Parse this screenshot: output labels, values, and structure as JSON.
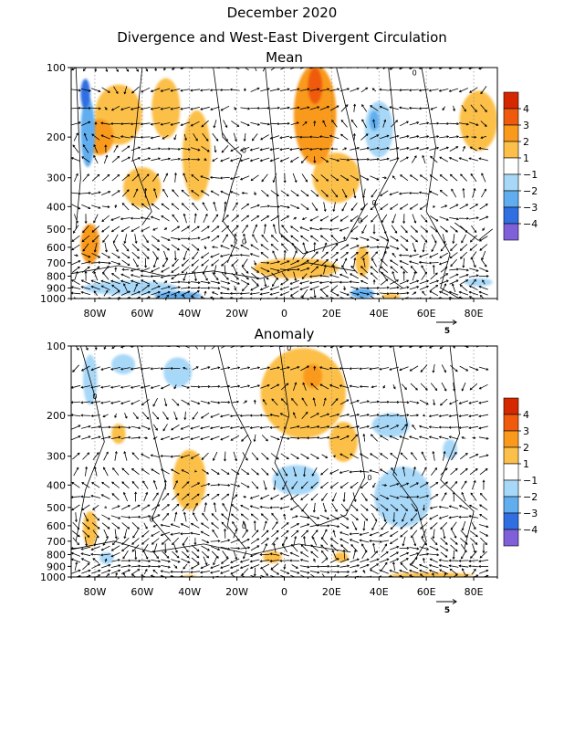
{
  "page": {
    "title_line1": "December 2020",
    "title_line2": "Divergence and West-East Divergent Circulation"
  },
  "chart_data": [
    {
      "type": "heatmap",
      "title": "Mean",
      "x_ticks": [
        "80W",
        "60W",
        "40W",
        "20W",
        "0",
        "20E",
        "40E",
        "60E",
        "80E"
      ],
      "x_tick_values": [
        -80,
        -60,
        -40,
        -20,
        0,
        20,
        40,
        60,
        80
      ],
      "xlim": [
        -90,
        90
      ],
      "y_ticks": [
        "100",
        "200",
        "300",
        "400",
        "500",
        "600",
        "700",
        "800",
        "900",
        "1000"
      ],
      "y_tick_values": [
        100,
        200,
        300,
        400,
        500,
        600,
        700,
        800,
        900,
        1000
      ],
      "ylim": [
        1000,
        100
      ],
      "y_scale": "log",
      "vector_reference_label": "5",
      "contour_labels": [
        {
          "lon": 55,
          "p": 105,
          "text": "0"
        },
        {
          "lon": -17,
          "p": 228,
          "text": "0"
        },
        {
          "lon": 38,
          "p": 385,
          "text": "0"
        },
        {
          "lon": -17,
          "p": 565,
          "text": "0"
        },
        {
          "lon": 32,
          "p": 460,
          "text": "0"
        }
      ],
      "shaded_regions": [
        {
          "lon": -83,
          "p": 190,
          "rx": 3,
          "ry": 0.35,
          "value": -2.5
        },
        {
          "lon": -84,
          "p": 130,
          "rx": 2,
          "ry": 0.15,
          "value": -3.5
        },
        {
          "lon": -78,
          "p": 200,
          "rx": 6,
          "ry": 0.18,
          "value": 2.2
        },
        {
          "lon": -70,
          "p": 160,
          "rx": 10,
          "ry": 0.3,
          "value": 1.6
        },
        {
          "lon": -50,
          "p": 150,
          "rx": 6,
          "ry": 0.3,
          "value": 1.6
        },
        {
          "lon": -37,
          "p": 240,
          "rx": 6,
          "ry": 0.45,
          "value": 1.5
        },
        {
          "lon": -60,
          "p": 330,
          "rx": 8,
          "ry": 0.2,
          "value": 1.3
        },
        {
          "lon": 13,
          "p": 160,
          "rx": 9,
          "ry": 0.5,
          "value": 2.5
        },
        {
          "lon": 13,
          "p": 120,
          "rx": 3,
          "ry": 0.18,
          "value": 3.8
        },
        {
          "lon": 22,
          "p": 300,
          "rx": 10,
          "ry": 0.25,
          "value": 1.4
        },
        {
          "lon": 40,
          "p": 185,
          "rx": 6,
          "ry": 0.28,
          "value": -1.6
        },
        {
          "lon": 38,
          "p": 170,
          "rx": 2,
          "ry": 0.1,
          "value": -2.4
        },
        {
          "lon": 82,
          "p": 170,
          "rx": 8,
          "ry": 0.3,
          "value": 1.8
        },
        {
          "lon": -82,
          "p": 580,
          "rx": 4,
          "ry": 0.2,
          "value": 2.2
        },
        {
          "lon": 5,
          "p": 740,
          "rx": 18,
          "ry": 0.1,
          "value": 1.4
        },
        {
          "lon": 33,
          "p": 690,
          "rx": 3,
          "ry": 0.15,
          "value": 1.4
        },
        {
          "lon": -65,
          "p": 900,
          "rx": 20,
          "ry": 0.07,
          "value": -1.8
        },
        {
          "lon": -45,
          "p": 970,
          "rx": 10,
          "ry": 0.04,
          "value": -2.5
        },
        {
          "lon": 33,
          "p": 950,
          "rx": 5,
          "ry": 0.05,
          "value": -2.5
        },
        {
          "lon": 45,
          "p": 980,
          "rx": 4,
          "ry": 0.03,
          "value": 1.5
        },
        {
          "lon": 82,
          "p": 850,
          "rx": 6,
          "ry": 0.04,
          "value": -1.5
        }
      ]
    },
    {
      "type": "heatmap",
      "title": "Anomaly",
      "x_ticks": [
        "80W",
        "60W",
        "40W",
        "20W",
        "0",
        "20E",
        "40E",
        "60E",
        "80E"
      ],
      "x_tick_values": [
        -80,
        -60,
        -40,
        -20,
        0,
        20,
        40,
        60,
        80
      ],
      "xlim": [
        -90,
        90
      ],
      "y_ticks": [
        "100",
        "200",
        "300",
        "400",
        "500",
        "600",
        "700",
        "800",
        "900",
        "1000"
      ],
      "y_tick_values": [
        100,
        200,
        300,
        400,
        500,
        600,
        700,
        800,
        900,
        1000
      ],
      "ylim": [
        1000,
        100
      ],
      "y_scale": "log",
      "vector_reference_label": "5",
      "contour_labels": [
        {
          "lon": -80,
          "p": 165,
          "text": "0"
        },
        {
          "lon": 2,
          "p": 102,
          "text": "0"
        },
        {
          "lon": 36,
          "p": 370,
          "text": "0"
        },
        {
          "lon": -56,
          "p": 560,
          "text": "0"
        },
        {
          "lon": -17,
          "p": 600,
          "text": "0"
        }
      ],
      "shaded_regions": [
        {
          "lon": -82,
          "p": 140,
          "rx": 3,
          "ry": 0.25,
          "value": -1.8
        },
        {
          "lon": -68,
          "p": 120,
          "rx": 5,
          "ry": 0.1,
          "value": -1.3
        },
        {
          "lon": -70,
          "p": 240,
          "rx": 3,
          "ry": 0.1,
          "value": 1.3
        },
        {
          "lon": -45,
          "p": 130,
          "rx": 6,
          "ry": 0.15,
          "value": -1.4
        },
        {
          "lon": 8,
          "p": 160,
          "rx": 18,
          "ry": 0.45,
          "value": 1.6
        },
        {
          "lon": 25,
          "p": 260,
          "rx": 6,
          "ry": 0.2,
          "value": 1.3
        },
        {
          "lon": 12,
          "p": 135,
          "rx": 4,
          "ry": 0.12,
          "value": 2.2
        },
        {
          "lon": -40,
          "p": 380,
          "rx": 7,
          "ry": 0.3,
          "value": 1.4
        },
        {
          "lon": 5,
          "p": 380,
          "rx": 10,
          "ry": 0.15,
          "value": -1.3
        },
        {
          "lon": 50,
          "p": 450,
          "rx": 12,
          "ry": 0.3,
          "value": -1.3
        },
        {
          "lon": 45,
          "p": 220,
          "rx": 8,
          "ry": 0.12,
          "value": -1.3
        },
        {
          "lon": 70,
          "p": 280,
          "rx": 3,
          "ry": 0.1,
          "value": -1.3
        },
        {
          "lon": -82,
          "p": 620,
          "rx": 3,
          "ry": 0.18,
          "value": 1.3
        },
        {
          "lon": -75,
          "p": 830,
          "rx": 3,
          "ry": 0.06,
          "value": -1.3
        },
        {
          "lon": -5,
          "p": 820,
          "rx": 4,
          "ry": 0.06,
          "value": 1.4
        },
        {
          "lon": 24,
          "p": 820,
          "rx": 3,
          "ry": 0.05,
          "value": 1.3
        },
        {
          "lon": 62,
          "p": 985,
          "rx": 18,
          "ry": 0.03,
          "value": 1.3
        },
        {
          "lon": -40,
          "p": 1000,
          "rx": 3,
          "ry": 0.02,
          "value": 1.3
        }
      ]
    }
  ],
  "colorbar": {
    "labels": [
      "4",
      "3",
      "2",
      "1",
      "−1",
      "−2",
      "−3",
      "−4"
    ],
    "colors": [
      "#d62800",
      "#ef5a0c",
      "#f99a1c",
      "#fcc04a",
      "#ffffff",
      "#a8d8f8",
      "#60aef0",
      "#2f6fe2",
      "#1e3fbe",
      "#8060d8"
    ]
  }
}
